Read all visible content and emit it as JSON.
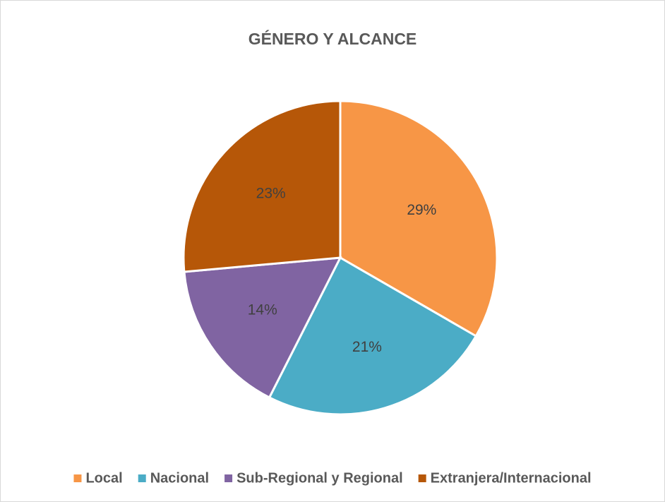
{
  "chart_data": {
    "type": "pie",
    "title": "GÉNERO Y ALCANCE",
    "categories": [
      "Local",
      "Nacional",
      "Sub-Regional y Regional",
      "Extranjera/Internacional"
    ],
    "values": [
      29,
      21,
      14,
      23
    ],
    "value_labels": [
      "29%",
      "21%",
      "14%",
      "23%"
    ],
    "colors": [
      "#f79646",
      "#4bacc6",
      "#8064a2",
      "#b65708"
    ],
    "legend": "bottom"
  }
}
